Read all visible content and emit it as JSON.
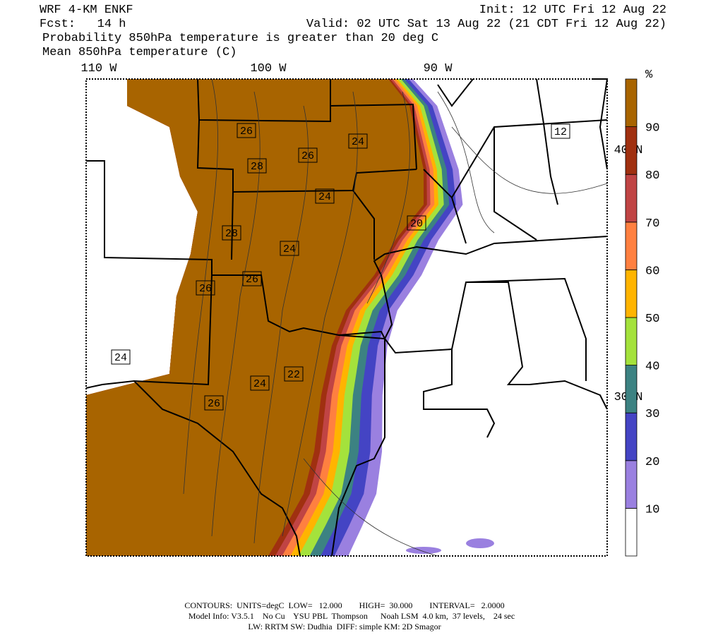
{
  "header": {
    "model": "WRF 4-KM ENKF",
    "init": "Init: 12 UTC Fri 12 Aug 22",
    "fcst": "Fcst:   14 h",
    "valid": "Valid: 02 UTC Sat 13 Aug 22 (21 CDT Fri 12 Aug 22)",
    "field1": "Probability 850hPa temperature is greater than 20 deg C",
    "field2": "Mean 850hPa temperature (C)"
  },
  "map": {
    "lon_labels": [
      "110 W",
      "100 W",
      "90 W"
    ],
    "lat_labels": [
      "40 N",
      "30 N"
    ],
    "contour_labels": [
      "26",
      "26",
      "24",
      "28",
      "24",
      "28",
      "24",
      "20",
      "26",
      "26",
      "24",
      "22",
      "24",
      "26",
      "12"
    ]
  },
  "colorbar": {
    "unit": "%",
    "levels": [
      10,
      20,
      30,
      40,
      50,
      60,
      70,
      80,
      90
    ],
    "colors": [
      "#ffffff",
      "#9a80e0",
      "#4444c4",
      "#3c8282",
      "#a4e23c",
      "#ffb400",
      "#ff8040",
      "#c04444",
      "#a03010",
      "#a86400"
    ]
  },
  "footer": {
    "line1": "CONTOURS:  UNITS=degC  LOW=   12.000        HIGH=  30.000        INTERVAL=   2.0000",
    "line2": "Model Info: V3.5.1    No Cu    YSU PBL  Thompson      Noah LSM  4.0 km,  37 levels,    24 sec",
    "line3": "LW: RRTM SW: Dudhia  DIFF: simple KM: 2D Smagor"
  }
}
